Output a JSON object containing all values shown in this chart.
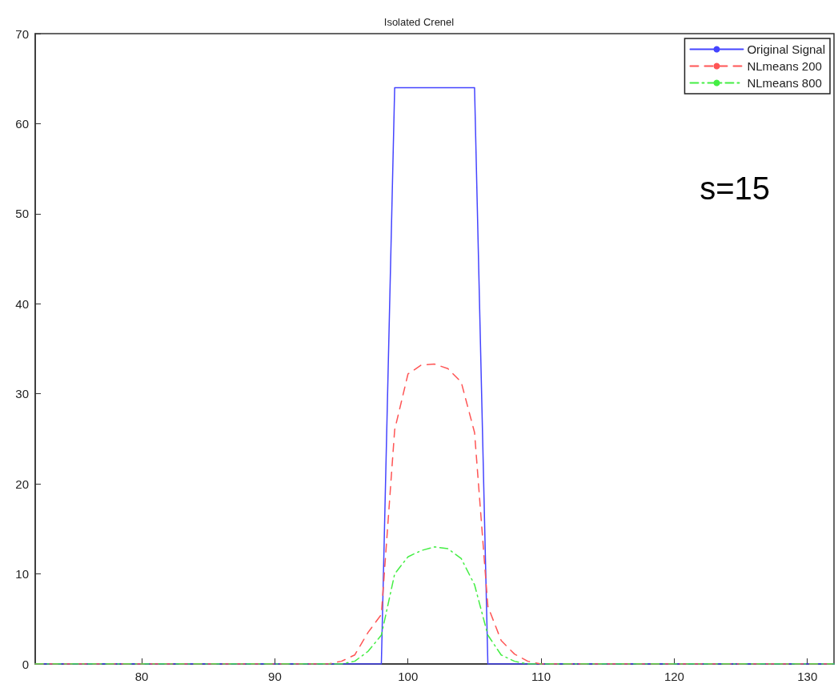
{
  "chart_data": {
    "type": "line",
    "title": "Isolated Crenel",
    "xlim": [
      72,
      132
    ],
    "xticks": [
      80,
      90,
      100,
      110,
      120,
      130
    ],
    "ylim": [
      0,
      70
    ],
    "yticks": [
      0,
      10,
      20,
      30,
      40,
      50,
      60,
      70
    ],
    "grid": false,
    "legend": "top right",
    "marker": "none",
    "annotations": [
      "s=15"
    ],
    "series": [
      {
        "name": "Original Signal",
        "color": "#4444ff",
        "line_style": "solid",
        "x": [
          72,
          98,
          99,
          105,
          106,
          132
        ],
        "values": [
          0,
          0,
          64,
          64,
          0,
          0
        ]
      },
      {
        "name": "NLmeans 200",
        "color": "#ff5555",
        "line_style": "dashed",
        "x": [
          72,
          94,
          95,
          96,
          97,
          98,
          99,
          100,
          101,
          102,
          103,
          104,
          105,
          106,
          107,
          108,
          109,
          110,
          132
        ],
        "values": [
          0,
          0,
          0.3,
          1.0,
          3.5,
          5.5,
          26,
          32.2,
          33.2,
          33.3,
          32.8,
          31.3,
          25.7,
          6.4,
          2.6,
          1.1,
          0.3,
          0,
          0
        ]
      },
      {
        "name": "NLmeans 800",
        "color": "#44ee44",
        "line_style": "dashdot",
        "x": [
          72,
          95,
          96,
          97,
          98,
          99,
          100,
          101,
          102,
          103,
          104,
          105,
          106,
          107,
          108,
          109,
          132
        ],
        "values": [
          0,
          0,
          0.3,
          1.4,
          3.2,
          10.0,
          11.9,
          12.6,
          13.0,
          12.8,
          11.7,
          8.8,
          3.2,
          1.0,
          0.3,
          0,
          0
        ]
      }
    ]
  }
}
